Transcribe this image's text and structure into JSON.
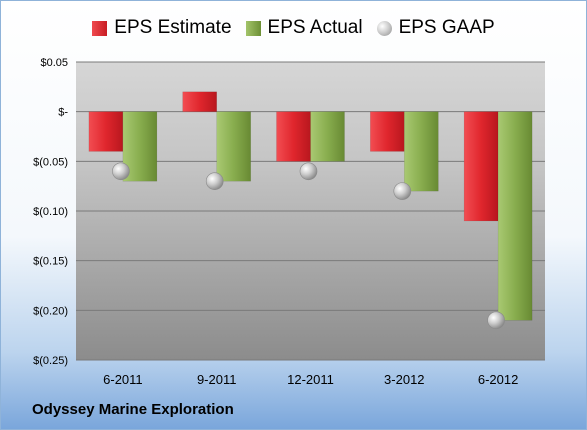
{
  "chart_data": {
    "type": "bar",
    "categories": [
      "6-2011",
      "9-2011",
      "12-2011",
      "3-2012",
      "6-2012"
    ],
    "series": [
      {
        "name": "EPS Estimate",
        "values": [
          -0.04,
          0.02,
          -0.05,
          -0.04,
          -0.11
        ],
        "color": "#d9262d",
        "kind": "bar"
      },
      {
        "name": "EPS Actual",
        "values": [
          -0.07,
          -0.07,
          -0.05,
          -0.08,
          -0.21
        ],
        "color": "#83a84a",
        "kind": "bar"
      },
      {
        "name": "EPS GAAP",
        "values": [
          -0.06,
          -0.07,
          -0.06,
          -0.08,
          -0.21
        ],
        "color": "#a6a6a6",
        "kind": "marker"
      }
    ],
    "yticks": [
      {
        "value": 0.05,
        "label": "$0.05"
      },
      {
        "value": 0.0,
        "label": "$-"
      },
      {
        "value": -0.05,
        "label": "$(0.05)"
      },
      {
        "value": -0.1,
        "label": "$(0.10)"
      },
      {
        "value": -0.15,
        "label": "$(0.15)"
      },
      {
        "value": -0.2,
        "label": "$(0.20)"
      },
      {
        "value": -0.25,
        "label": "$(0.25)"
      }
    ],
    "ylim": [
      -0.25,
      0.05
    ],
    "grid": true,
    "legend_position": "top"
  },
  "company": "Odyssey Marine Exploration"
}
